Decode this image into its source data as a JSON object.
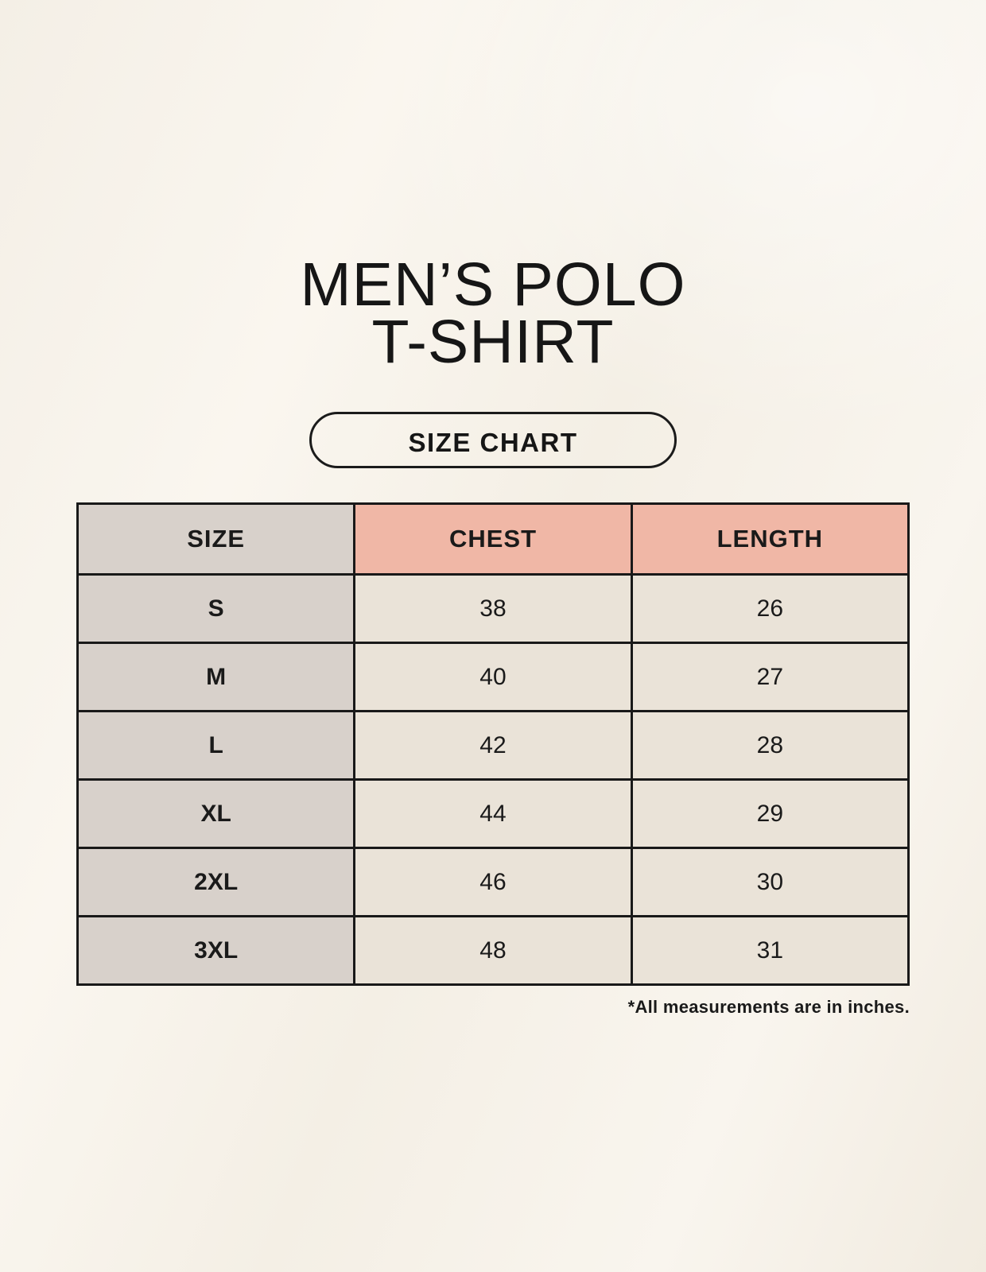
{
  "header": {
    "title_line1": "MEN’S POLO",
    "title_line2": "T-SHIRT",
    "badge_label": "SIZE CHART"
  },
  "chart_data": {
    "type": "table",
    "title": "MEN’S POLO T-SHIRT",
    "subtitle": "SIZE CHART",
    "columns": [
      "SIZE",
      "CHEST",
      "LENGTH"
    ],
    "rows": [
      {
        "size": "S",
        "chest": 38,
        "length": 26
      },
      {
        "size": "M",
        "chest": 40,
        "length": 27
      },
      {
        "size": "L",
        "chest": 42,
        "length": 28
      },
      {
        "size": "XL",
        "chest": 44,
        "length": 29
      },
      {
        "size": "2XL",
        "chest": 46,
        "length": 30
      },
      {
        "size": "3XL",
        "chest": 48,
        "length": 31
      }
    ],
    "units": "inches",
    "footnote": "*All measurements are in inches."
  },
  "footnote": "*All measurements are in inches.",
  "colors": {
    "background": "#F7F3EB",
    "header_accent_pink": "#F0B7A6",
    "label_cell_gray": "#D8D1CB",
    "value_cell_cream": "#EAE3D8",
    "table_border": "#191919",
    "text": "#1A1A1A"
  }
}
